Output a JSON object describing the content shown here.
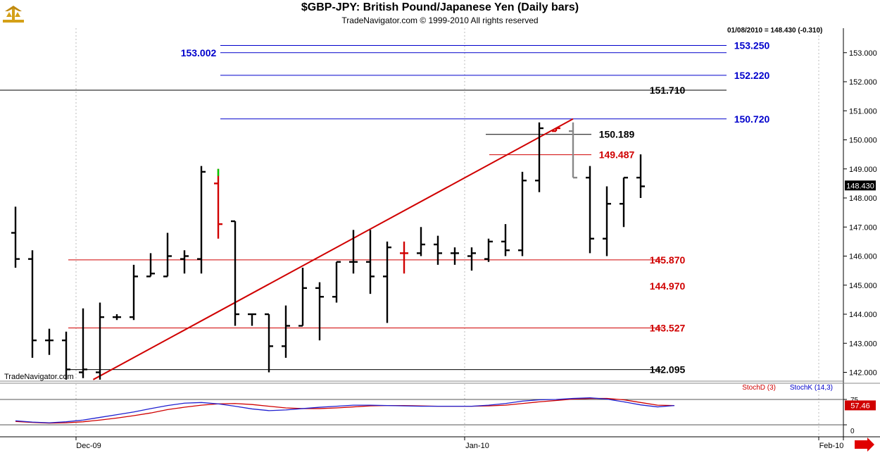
{
  "header": {
    "title": "$GBP-JPY:  British Pound/Japanese Yen  (Daily bars)",
    "subtitle": "TradeNavigator.com © 1999-2010 All rights reserved",
    "last_bar_info": "01/08/2010 = 148.430 (-0.310)",
    "watermark": "TradeNavigator.com",
    "price_tag": "148.430"
  },
  "chart_data": [
    {
      "type": "ohlc",
      "title": "$GBP-JPY:  British Pound/Japanese Yen  (Daily bars)",
      "y_ticks": [
        "153.000",
        "152.000",
        "151.000",
        "150.000",
        "149.000",
        "148.000",
        "147.000",
        "146.000",
        "145.000",
        "144.000",
        "143.000",
        "142.000"
      ],
      "x_ticks": [
        "Dec-09",
        "Jan-10",
        "Feb-10"
      ],
      "ylim": [
        141.75,
        153.85
      ],
      "bars": [
        {
          "o": 146.8,
          "h": 147.7,
          "l": 145.6,
          "c": 145.9
        },
        {
          "o": 145.9,
          "h": 146.2,
          "l": 142.5,
          "c": 143.1
        },
        {
          "o": 143.1,
          "h": 143.5,
          "l": 142.6,
          "c": 143.1
        },
        {
          "o": 143.1,
          "h": 143.4,
          "l": 141.75,
          "c": 142.1
        },
        {
          "o": 142.0,
          "h": 144.2,
          "l": 141.8,
          "c": 142.1
        },
        {
          "o": 142.0,
          "h": 144.4,
          "l": 141.75,
          "c": 143.9
        },
        {
          "o": 143.9,
          "h": 144.0,
          "l": 143.8,
          "c": 143.9
        },
        {
          "o": 143.9,
          "h": 145.7,
          "l": 143.8,
          "c": 145.3
        },
        {
          "o": 145.3,
          "h": 146.1,
          "l": 145.3,
          "c": 145.4
        },
        {
          "o": 145.3,
          "h": 146.8,
          "l": 145.3,
          "c": 146.0
        },
        {
          "o": 145.9,
          "h": 146.2,
          "l": 145.4,
          "c": 146.0
        },
        {
          "o": 145.9,
          "h": 149.1,
          "l": 145.4,
          "c": 148.9
        },
        {
          "o": 148.5,
          "h": 149.0,
          "l": 146.6,
          "c": 147.1,
          "color": "red"
        },
        {
          "o": 147.2,
          "h": 147.2,
          "l": 143.6,
          "c": 144.0
        },
        {
          "o": 144.0,
          "h": 144.0,
          "l": 143.6,
          "c": 144.0
        },
        {
          "o": 144.0,
          "h": 144.0,
          "l": 142.0,
          "c": 142.9
        },
        {
          "o": 142.9,
          "h": 144.3,
          "l": 142.5,
          "c": 143.6
        },
        {
          "o": 143.6,
          "h": 145.6,
          "l": 143.6,
          "c": 144.9
        },
        {
          "o": 144.9,
          "h": 145.1,
          "l": 143.1,
          "c": 144.6
        },
        {
          "o": 144.6,
          "h": 145.8,
          "l": 144.4,
          "c": 145.8
        },
        {
          "o": 145.8,
          "h": 146.9,
          "l": 145.4,
          "c": 145.8
        },
        {
          "o": 145.8,
          "h": 146.9,
          "l": 144.7,
          "c": 145.3
        },
        {
          "o": 145.3,
          "h": 146.5,
          "l": 143.7,
          "c": 146.3
        },
        {
          "o": 146.1,
          "h": 146.5,
          "l": 145.4,
          "c": 146.1,
          "color": "red"
        },
        {
          "o": 146.1,
          "h": 147.0,
          "l": 146.0,
          "c": 146.4
        },
        {
          "o": 146.4,
          "h": 146.7,
          "l": 145.7,
          "c": 146.1
        },
        {
          "o": 146.1,
          "h": 146.3,
          "l": 145.7,
          "c": 146.1
        },
        {
          "o": 146.0,
          "h": 146.3,
          "l": 145.5,
          "c": 146.1
        },
        {
          "o": 145.9,
          "h": 146.6,
          "l": 145.8,
          "c": 146.5
        },
        {
          "o": 146.5,
          "h": 147.1,
          "l": 146.0,
          "c": 146.2
        },
        {
          "o": 146.2,
          "h": 148.9,
          "l": 146.0,
          "c": 148.6
        },
        {
          "o": 148.6,
          "h": 150.6,
          "l": 148.2,
          "c": 150.4
        },
        {
          "o": 150.3,
          "h": 150.4,
          "l": 150.3,
          "c": 150.4,
          "color": "red"
        },
        {
          "o": 150.3,
          "h": 150.6,
          "l": 148.7,
          "c": 148.7,
          "color": "gray"
        },
        {
          "o": 148.7,
          "h": 149.1,
          "l": 146.1,
          "c": 146.6
        },
        {
          "o": 146.6,
          "h": 148.4,
          "l": 146.0,
          "c": 147.8
        },
        {
          "o": 147.8,
          "h": 148.7,
          "l": 147.0,
          "c": 148.7
        },
        {
          "o": 148.7,
          "h": 149.5,
          "l": 148.0,
          "c": 148.4
        }
      ]
    },
    {
      "type": "line",
      "title": "",
      "y_ticks": [
        "75",
        "0"
      ],
      "ylim": [
        -10,
        100
      ],
      "legend": [
        "StochD (3)",
        "StochK (14,3)"
      ],
      "value_tag": "57.46",
      "series": [
        {
          "name": "StochD (3)",
          "color": "#d00000",
          "values": [
            10,
            7,
            5,
            6,
            9,
            14,
            20,
            27,
            35,
            45,
            52,
            58,
            62,
            63,
            60,
            55,
            50,
            48,
            48,
            50,
            53,
            56,
            57,
            57,
            56,
            55,
            55,
            55,
            56,
            58,
            63,
            68,
            72,
            76,
            78,
            78,
            74,
            66,
            58,
            57
          ]
        },
        {
          "name": "StochK (14,3)",
          "color": "#2020d0",
          "values": [
            12,
            8,
            6,
            9,
            14,
            22,
            30,
            38,
            48,
            57,
            64,
            66,
            62,
            55,
            47,
            42,
            44,
            48,
            52,
            55,
            58,
            58,
            57,
            56,
            55,
            55,
            55,
            55,
            58,
            63,
            70,
            74,
            75,
            78,
            80,
            76,
            68,
            59,
            53,
            57
          ]
        }
      ]
    }
  ],
  "levels": [
    {
      "value": 153.25,
      "label": "153.250",
      "color": "#0000cc"
    },
    {
      "value": 153.0,
      "label": "",
      "color": "#0000cc"
    },
    {
      "value": 152.22,
      "label": "152.220",
      "color": "#0000cc"
    },
    {
      "value": 151.71,
      "label": "151.710",
      "color": "#000000"
    },
    {
      "value": 150.72,
      "label": "150.720",
      "color": "#0000cc"
    },
    {
      "value": 150.189,
      "label": "150.189",
      "color": "#000000"
    },
    {
      "value": 149.487,
      "label": "149.487",
      "color": "#d00000"
    },
    {
      "value": 145.87,
      "label": "145.870",
      "color": "#d00000"
    },
    {
      "value": 144.97,
      "label": "144.970",
      "color": "#d00000",
      "no_line": true
    },
    {
      "value": 143.527,
      "label": "143.527",
      "color": "#d00000"
    },
    {
      "value": 142.095,
      "label": "142.095",
      "color": "#000000"
    }
  ],
  "left_label": {
    "text": "153.002",
    "color": "#0000cc"
  },
  "trendline": {
    "from": {
      "bar": 4.6,
      "price": 141.75
    },
    "to": {
      "bar": 33,
      "price": 150.72
    },
    "color": "#d00000"
  },
  "colors": {
    "blue": "#0000cc",
    "red": "#d00000",
    "green": "#00cc00",
    "gray": "#888888"
  }
}
